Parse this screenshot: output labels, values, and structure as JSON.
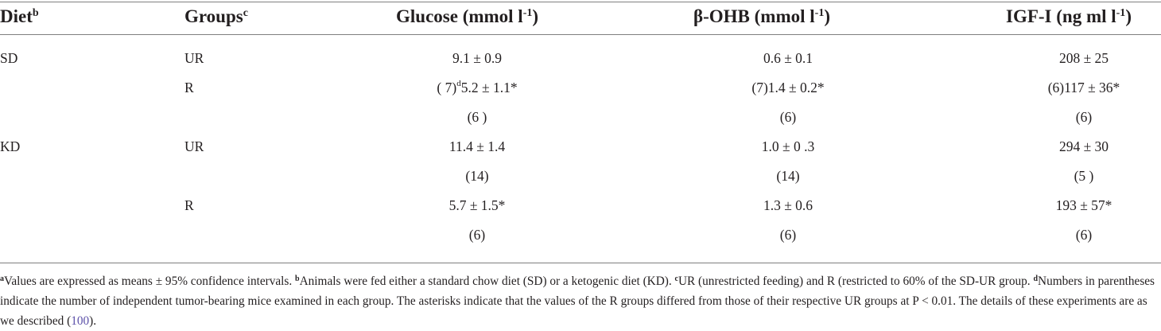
{
  "headers": {
    "diet": "Diet",
    "diet_sup": "b",
    "groups": "Groups",
    "groups_sup": "c",
    "glucose": "Glucose (mmol l",
    "glucose_sup": "-1",
    "glucose_close": ")",
    "ohb": "β-OHB (mmol l",
    "ohb_sup": "-1",
    "ohb_close": ")",
    "igf": "IGF-I (ng ml l",
    "igf_sup": "-1",
    "igf_close": ")"
  },
  "rows": {
    "r1": {
      "diet": "SD",
      "group": "UR",
      "glucose": "9.1 ± 0.9",
      "ohb": "0.6 ± 0.1",
      "igf": "208 ± 25"
    },
    "r2": {
      "group": "R",
      "glucose_pre": "( 7)",
      "glucose_sup": "d",
      "glucose": "5.2 ± 1.1*",
      "ohb": "(7)1.4 ± 0.2*",
      "igf": "(6)117 ± 36*"
    },
    "r3": {
      "glucose": "(6 )",
      "ohb": "(6)",
      "igf": "(6)"
    },
    "r4": {
      "diet": "KD",
      "group": "UR",
      "glucose": "11.4 ± 1.4",
      "ohb": "1.0 ± 0 .3",
      "igf": "294 ± 30"
    },
    "r5": {
      "glucose": "(14)",
      "ohb": "(14)",
      "igf": "(5 )"
    },
    "r6": {
      "group": "R",
      "glucose": "5.7 ± 1.5*",
      "ohb": "1.3 ± 0.6",
      "igf": "193 ± 57*"
    },
    "r7": {
      "glucose": "(6)",
      "ohb": "(6)",
      "igf": "(6)"
    }
  },
  "footnote": {
    "a_mark": "a",
    "a_text": "Values are expressed as means ± 95% confidence intervals. ",
    "b_mark": "b",
    "b_text": "Animals were fed either a standard chow diet (SD) or a ketogenic diet (KD). ",
    "c_mark": "c",
    "c_text": "UR (unrestricted feeding) and R (restricted to 60% of the SD-UR group. ",
    "d_mark": "d",
    "d_text": "Numbers in parentheses indicate the number of independent tumor-bearing mice examined in each group. The asterisks indicate that the values of the R groups differed from those of their respective UR groups at P < 0.01. The details of these experiments are as we described (",
    "ref": "100",
    "end": ")."
  },
  "colors": {
    "rule": "#7f7f7f",
    "text": "#231f20",
    "link": "#5b4fa8"
  }
}
